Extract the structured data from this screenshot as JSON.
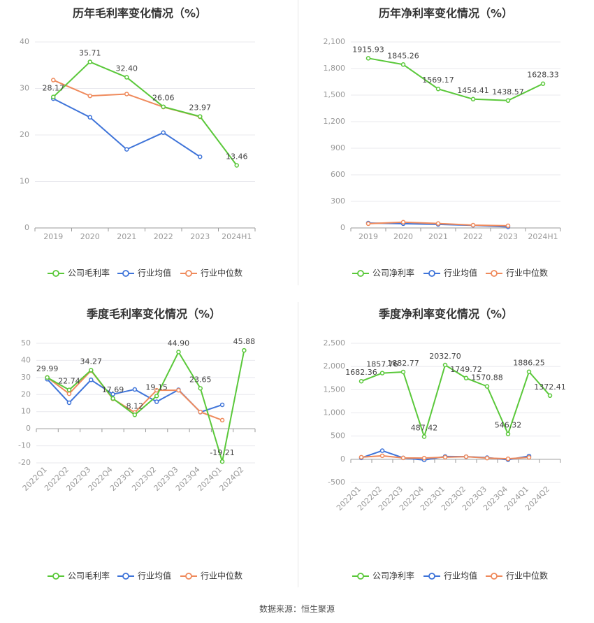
{
  "colors": {
    "company": "#5ac83a",
    "avg": "#3f74d9",
    "median": "#ef8a5c"
  },
  "legend": {
    "avg": "行业均值",
    "median": "行业中位数"
  },
  "source": "数据来源：恒生聚源",
  "chart_data": [
    {
      "type": "line",
      "title": "历年毛利率变化情况（%）",
      "categories": [
        "2019",
        "2020",
        "2021",
        "2022",
        "2023",
        "2024H1"
      ],
      "ylim": [
        0,
        40
      ],
      "yticks": [
        0,
        10,
        20,
        30,
        40
      ],
      "ytick_labels": [
        "0",
        "10",
        "20",
        "30",
        "40"
      ],
      "grid": true,
      "legend_position": "bottom",
      "series": [
        {
          "key": "company",
          "name": "公司毛利率",
          "values": [
            28.17,
            35.71,
            32.4,
            26.06,
            23.97,
            13.46
          ],
          "labels": [
            "28.17",
            "35.71",
            "32.40",
            "26.06",
            "23.97",
            "13.46"
          ]
        },
        {
          "key": "avg",
          "name": "行业均值",
          "values": [
            27.8,
            23.8,
            16.9,
            20.5,
            15.3,
            null
          ]
        },
        {
          "key": "median",
          "name": "行业中位数",
          "values": [
            31.8,
            28.4,
            28.8,
            26.0,
            23.9,
            null
          ]
        }
      ]
    },
    {
      "type": "line",
      "title": "历年净利率变化情况（%）",
      "categories": [
        "2019",
        "2020",
        "2021",
        "2022",
        "2023",
        "2024H1"
      ],
      "ylim": [
        0,
        2100
      ],
      "yticks": [
        0,
        300,
        600,
        900,
        1200,
        1500,
        1800,
        2100
      ],
      "ytick_labels": [
        "0",
        "300",
        "600",
        "900",
        "1,200",
        "1,500",
        "1,800",
        "2,100"
      ],
      "grid": true,
      "legend_position": "bottom",
      "series": [
        {
          "key": "company",
          "name": "公司净利率",
          "values": [
            1915.93,
            1845.26,
            1569.17,
            1454.41,
            1438.57,
            1628.33
          ],
          "labels": [
            "1915.93",
            "1845.26",
            "1569.17",
            "1454.41",
            "1438.57",
            "1628.33"
          ]
        },
        {
          "key": "avg",
          "name": "行业均值",
          "values": [
            55,
            48,
            40,
            30,
            12,
            null
          ]
        },
        {
          "key": "median",
          "name": "行业中位数",
          "values": [
            48,
            65,
            50,
            32,
            25,
            null
          ]
        }
      ]
    },
    {
      "type": "line",
      "title": "季度毛利率变化情况（%）",
      "categories": [
        "2022Q1",
        "2022Q2",
        "2022Q3",
        "2022Q4",
        "2023Q1",
        "2023Q2",
        "2023Q3",
        "2023Q4",
        "2024Q1",
        "2024Q2"
      ],
      "ylim": [
        -20,
        50
      ],
      "yticks": [
        -20,
        -10,
        0,
        10,
        20,
        30,
        40,
        50
      ],
      "ytick_labels": [
        "-20",
        "-10",
        "0",
        "10",
        "20",
        "30",
        "40",
        "50"
      ],
      "grid": true,
      "legend_position": "bottom",
      "series": [
        {
          "key": "company",
          "name": "公司毛利率",
          "values": [
            29.99,
            22.74,
            34.27,
            17.69,
            8.12,
            19.15,
            44.9,
            23.65,
            -19.21,
            45.88
          ],
          "labels": [
            "29.99",
            "22.74",
            "34.27",
            "17.69",
            "8.12",
            "19.15",
            "44.90",
            "23.65",
            "-19.21",
            "45.88"
          ]
        },
        {
          "key": "avg",
          "name": "行业均值",
          "values": [
            29.0,
            15.2,
            28.6,
            20.2,
            23.0,
            15.8,
            22.8,
            9.7,
            14.0,
            null
          ]
        },
        {
          "key": "median",
          "name": "行业中位数",
          "values": [
            30.0,
            20.5,
            34.0,
            17.5,
            9.5,
            22.5,
            22.5,
            9.8,
            5.0,
            null
          ]
        }
      ]
    },
    {
      "type": "line",
      "title": "季度净利率变化情况（%）",
      "categories": [
        "2022Q1",
        "2022Q2",
        "2022Q3",
        "2022Q4",
        "2023Q1",
        "2023Q2",
        "2023Q3",
        "2023Q4",
        "2024Q1",
        "2024Q2"
      ],
      "ylim": [
        -500,
        2500
      ],
      "yticks": [
        -500,
        0,
        500,
        1000,
        1500,
        2000,
        2500
      ],
      "ytick_labels": [
        "-500",
        "0",
        "500",
        "1,000",
        "1,500",
        "2,000",
        "2,500"
      ],
      "grid": true,
      "legend_position": "bottom",
      "series": [
        {
          "key": "company",
          "name": "公司净利率",
          "values": [
            1682.36,
            1857.76,
            1882.77,
            487.42,
            2032.7,
            1749.72,
            1570.88,
            546.32,
            1886.25,
            1372.41
          ],
          "labels": [
            "1682.36",
            "1857.76",
            "1882.77",
            "487.42",
            "2032.70",
            "1749.72",
            "1570.88",
            "546.32",
            "1886.25",
            "1372.41"
          ]
        },
        {
          "key": "avg",
          "name": "行业均值",
          "values": [
            30,
            185,
            30,
            -15,
            60,
            55,
            35,
            -10,
            70,
            null
          ]
        },
        {
          "key": "median",
          "name": "行业中位数",
          "values": [
            45,
            75,
            30,
            25,
            45,
            55,
            25,
            10,
            40,
            null
          ]
        }
      ]
    }
  ]
}
